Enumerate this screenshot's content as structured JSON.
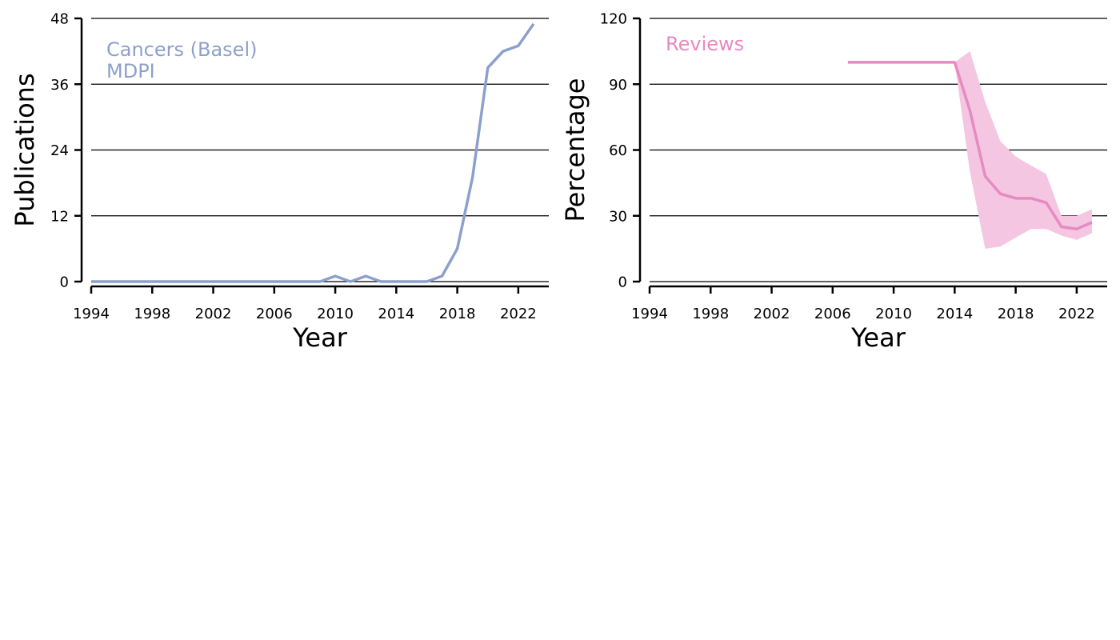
{
  "chart_data": [
    {
      "type": "line",
      "xlabel": "Year",
      "ylabel": "Publications",
      "xlim": [
        1994,
        2024
      ],
      "ylim": [
        0,
        48
      ],
      "xticks": [
        1994,
        1998,
        2002,
        2006,
        2010,
        2014,
        2018,
        2022
      ],
      "yticks": [
        0,
        12,
        24,
        36,
        48
      ],
      "grid": "horizontal",
      "annotations": [
        "Cancers (Basel)",
        "MDPI"
      ],
      "color": "#8da0cb",
      "series": [
        {
          "x": [
            1994,
            1995,
            1996,
            1997,
            1998,
            1999,
            2000,
            2001,
            2002,
            2003,
            2004,
            2005,
            2006,
            2007,
            2008,
            2009,
            2010,
            2011,
            2012,
            2013,
            2014,
            2015,
            2016,
            2017,
            2018,
            2019,
            2020,
            2021,
            2022,
            2023
          ],
          "values": [
            0,
            0,
            0,
            0,
            0,
            0,
            0,
            0,
            0,
            0,
            0,
            0,
            0,
            0,
            0,
            0,
            1,
            0,
            1,
            0,
            0,
            0,
            0,
            1,
            6,
            19,
            39,
            42,
            43,
            47
          ]
        }
      ]
    },
    {
      "type": "line",
      "xlabel": "Year",
      "ylabel": "Percentage",
      "xlim": [
        1994,
        2024
      ],
      "ylim": [
        0,
        120
      ],
      "xticks": [
        1994,
        1998,
        2002,
        2006,
        2010,
        2014,
        2018,
        2022
      ],
      "yticks": [
        0,
        30,
        60,
        90,
        120
      ],
      "grid": "horizontal",
      "annotations": [
        "Reviews"
      ],
      "color": "#e78ac3",
      "band_color": "#f4c6e1",
      "series": [
        {
          "x": [
            2007,
            2008,
            2009,
            2010,
            2011,
            2012,
            2013,
            2014,
            2015,
            2016,
            2017,
            2018,
            2019,
            2020,
            2021,
            2022,
            2023
          ],
          "values": [
            100,
            100,
            100,
            100,
            100,
            100,
            100,
            100,
            78,
            48,
            40,
            38,
            38,
            36,
            25,
            24,
            27
          ],
          "lower": [
            null,
            null,
            null,
            null,
            null,
            null,
            null,
            100,
            50,
            15,
            16,
            20,
            24,
            24,
            21,
            19,
            22
          ],
          "upper": [
            null,
            null,
            null,
            null,
            null,
            null,
            null,
            100,
            105,
            82,
            64,
            57,
            53,
            49,
            30,
            30,
            33
          ]
        }
      ]
    }
  ]
}
